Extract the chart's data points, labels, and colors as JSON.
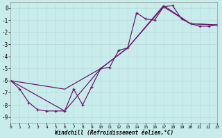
{
  "xlabel": "Windchill (Refroidissement éolien,°C)",
  "bg_color": "#c8ecec",
  "grid_color": "#b8d8d8",
  "line_color": "#6b1a6b",
  "xlim": [
    0,
    23
  ],
  "ylim": [
    -9.5,
    0.5
  ],
  "yticks": [
    0,
    -1,
    -2,
    -3,
    -4,
    -5,
    -6,
    -7,
    -8,
    -9
  ],
  "xticks": [
    0,
    1,
    2,
    3,
    4,
    5,
    6,
    7,
    8,
    9,
    10,
    11,
    12,
    13,
    14,
    15,
    16,
    17,
    18,
    19,
    20,
    21,
    22,
    23
  ],
  "series": [
    {
      "x": [
        0,
        1,
        2,
        3,
        4,
        5,
        6,
        7,
        8,
        9,
        10,
        11,
        12,
        13,
        14,
        15,
        16,
        17,
        18,
        19,
        20,
        21,
        22,
        23
      ],
      "y": [
        -6.0,
        -6.7,
        -7.8,
        -8.4,
        -8.5,
        -8.5,
        -8.5,
        -6.7,
        -8.0,
        -6.5,
        -5.0,
        -4.9,
        -3.5,
        -3.3,
        -0.4,
        -0.9,
        -1.0,
        0.1,
        0.2,
        -0.9,
        -1.3,
        -1.5,
        -1.5,
        -1.4
      ],
      "marker": "+",
      "lw": 0.9,
      "ms": 3.5
    },
    {
      "x": [
        0,
        6,
        10,
        13,
        17,
        20,
        23
      ],
      "y": [
        -6.0,
        -8.5,
        -5.0,
        -3.3,
        0.1,
        -1.3,
        -1.4
      ],
      "marker": null,
      "lw": 0.9,
      "ms": 0
    },
    {
      "x": [
        0,
        6,
        10,
        13,
        17,
        20,
        23
      ],
      "y": [
        -6.0,
        -6.7,
        -5.0,
        -3.3,
        0.2,
        -1.3,
        -1.4
      ],
      "marker": null,
      "lw": 0.9,
      "ms": 0
    }
  ]
}
